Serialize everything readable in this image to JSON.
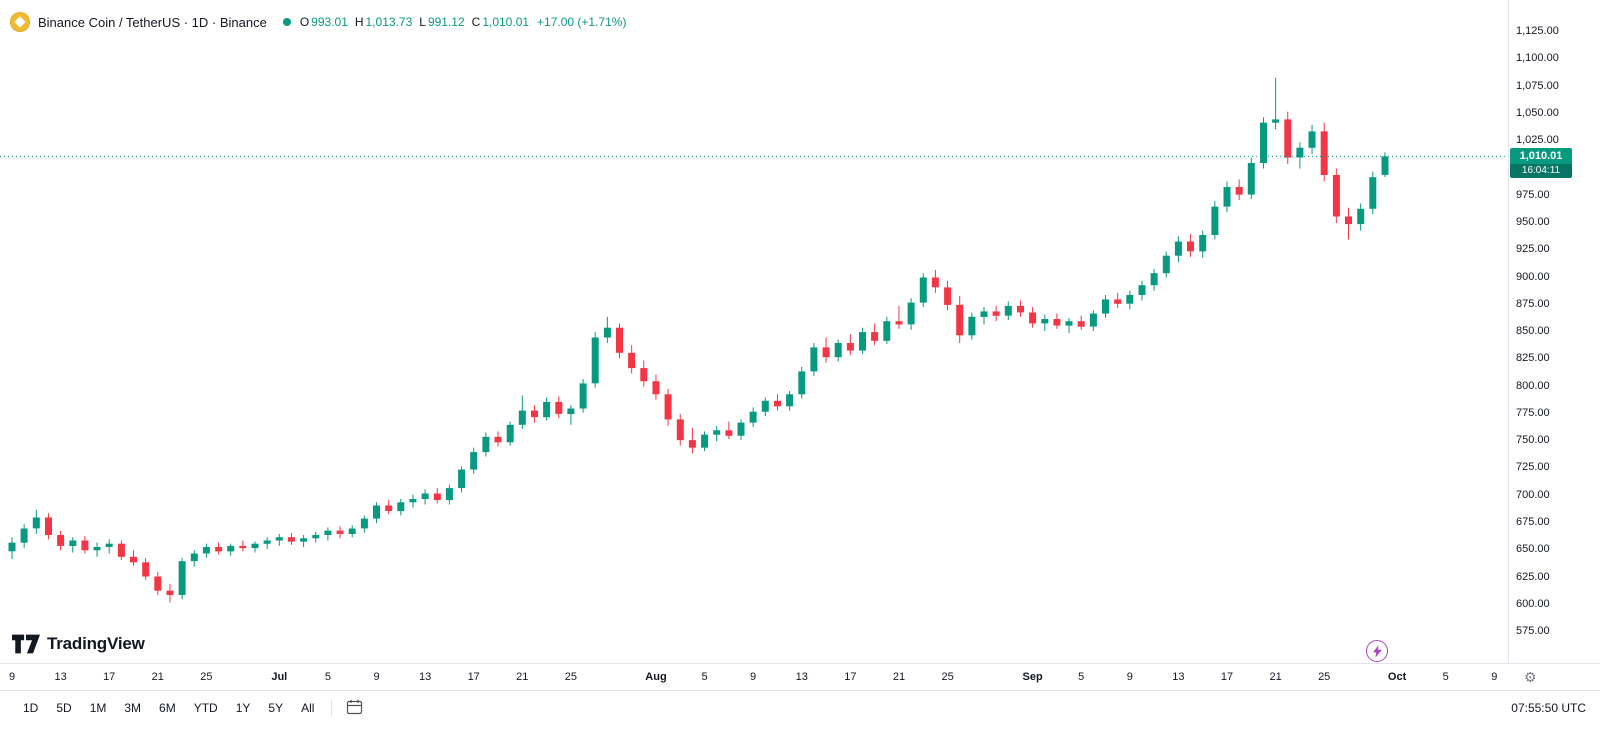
{
  "header": {
    "symbol_title": "Binance Coin / TetherUS · 1D · Binance",
    "ohlc_items": [
      {
        "label": "O",
        "value": "993.01"
      },
      {
        "label": "H",
        "value": "1,013.73"
      },
      {
        "label": "L",
        "value": "991.12"
      },
      {
        "label": "C",
        "value": "1,010.01"
      }
    ],
    "change": "+17.00 (+1.71%)"
  },
  "logo": {
    "brand": "TradingView"
  },
  "toolbar": {
    "ranges": [
      "1D",
      "5D",
      "1M",
      "3M",
      "6M",
      "YTD",
      "1Y",
      "5Y",
      "All"
    ],
    "clock": "07:55:50 UTC"
  },
  "colors": {
    "up": "#089981",
    "down": "#f23645",
    "last_price_line": "#089981",
    "tag_bg": "#089981",
    "tag_countdown_bg": "#077566",
    "marker_purple": "#ab47bc",
    "axis_text": "#131722",
    "border": "#e0e3eb",
    "coin_gold": "#f3ba2f"
  },
  "chart_data": {
    "type": "candlestick",
    "title": "Binance Coin / TetherUS",
    "interval": "1D",
    "exchange": "Binance",
    "ylim": [
      575,
      1125
    ],
    "y_tick_step": 25,
    "grid": false,
    "last_price": 1010.01,
    "last_price_label": "1,010.01",
    "countdown": "16:04:11",
    "open": 993.01,
    "high": 1013.73,
    "low": 991.12,
    "close": 1010.01,
    "change_text": "+17.00 (+1.71%)",
    "columns": [
      "date",
      "open",
      "high",
      "low",
      "close"
    ],
    "y_ticks": [
      {
        "t": "1,125.00",
        "v": 1125
      },
      {
        "t": "1,100.00",
        "v": 1100
      },
      {
        "t": "1,075.00",
        "v": 1075
      },
      {
        "t": "1,050.00",
        "v": 1050
      },
      {
        "t": "1,025.00",
        "v": 1025
      },
      {
        "t": "975.00",
        "v": 975
      },
      {
        "t": "950.00",
        "v": 950
      },
      {
        "t": "925.00",
        "v": 925
      },
      {
        "t": "900.00",
        "v": 900
      },
      {
        "t": "875.00",
        "v": 875
      },
      {
        "t": "850.00",
        "v": 850
      },
      {
        "t": "825.00",
        "v": 825
      },
      {
        "t": "800.00",
        "v": 800
      },
      {
        "t": "775.00",
        "v": 775
      },
      {
        "t": "750.00",
        "v": 750
      },
      {
        "t": "725.00",
        "v": 725
      },
      {
        "t": "700.00",
        "v": 700
      },
      {
        "t": "675.00",
        "v": 675
      },
      {
        "t": "650.00",
        "v": 650
      },
      {
        "t": "625.00",
        "v": 625
      },
      {
        "t": "600.00",
        "v": 600
      },
      {
        "t": "575.00",
        "v": 575
      }
    ],
    "x_ticks": [
      {
        "t": "9",
        "d": 0
      },
      {
        "t": "13",
        "d": 4
      },
      {
        "t": "17",
        "d": 8
      },
      {
        "t": "21",
        "d": 12
      },
      {
        "t": "25",
        "d": 16
      },
      {
        "t": "Jul",
        "d": 22,
        "m": 1
      },
      {
        "t": "5",
        "d": 26
      },
      {
        "t": "9",
        "d": 30
      },
      {
        "t": "13",
        "d": 34
      },
      {
        "t": "17",
        "d": 38
      },
      {
        "t": "21",
        "d": 42
      },
      {
        "t": "25",
        "d": 46
      },
      {
        "t": "Aug",
        "d": 53,
        "m": 1
      },
      {
        "t": "5",
        "d": 57
      },
      {
        "t": "9",
        "d": 61
      },
      {
        "t": "13",
        "d": 65
      },
      {
        "t": "17",
        "d": 69
      },
      {
        "t": "21",
        "d": 73
      },
      {
        "t": "25",
        "d": 77
      },
      {
        "t": "Sep",
        "d": 84,
        "m": 1
      },
      {
        "t": "5",
        "d": 88
      },
      {
        "t": "9",
        "d": 92
      },
      {
        "t": "13",
        "d": 96
      },
      {
        "t": "17",
        "d": 100
      },
      {
        "t": "21",
        "d": 104
      },
      {
        "t": "25",
        "d": 108
      },
      {
        "t": "Oct",
        "d": 114,
        "m": 1
      },
      {
        "t": "5",
        "d": 118
      },
      {
        "t": "9",
        "d": 122
      }
    ],
    "candles": [
      [
        "Jun 9",
        648,
        661,
        641,
        656
      ],
      [
        "Jun 10",
        656,
        673,
        651,
        669
      ],
      [
        "Jun 11",
        669,
        686,
        664,
        679
      ],
      [
        "Jun 12",
        679,
        683,
        659,
        663
      ],
      [
        "Jun 13",
        663,
        667,
        649,
        653
      ],
      [
        "Jun 14",
        653,
        661,
        647,
        658
      ],
      [
        "Jun 15",
        658,
        662,
        646,
        649
      ],
      [
        "Jun 16",
        649,
        656,
        643,
        652
      ],
      [
        "Jun 17",
        652,
        659,
        646,
        655
      ],
      [
        "Jun 18",
        655,
        658,
        640,
        643
      ],
      [
        "Jun 19",
        643,
        649,
        635,
        638
      ],
      [
        "Jun 20",
        638,
        642,
        622,
        625
      ],
      [
        "Jun 21",
        625,
        629,
        608,
        612
      ],
      [
        "Jun 22",
        612,
        618,
        601,
        608
      ],
      [
        "Jun 23",
        608,
        642,
        604,
        639
      ],
      [
        "Jun 24",
        639,
        649,
        634,
        646
      ],
      [
        "Jun 25",
        646,
        655,
        642,
        652
      ],
      [
        "Jun 26",
        652,
        656,
        645,
        648
      ],
      [
        "Jun 27",
        648,
        655,
        644,
        653
      ],
      [
        "Jun 28",
        653,
        658,
        648,
        651
      ],
      [
        "Jun 29",
        651,
        657,
        647,
        655
      ],
      [
        "Jun 30",
        655,
        661,
        650,
        658
      ],
      [
        "Jul 1",
        658,
        664,
        653,
        661
      ],
      [
        "Jul 2",
        661,
        665,
        654,
        657
      ],
      [
        "Jul 3",
        657,
        663,
        652,
        660
      ],
      [
        "Jul 4",
        660,
        666,
        656,
        663
      ],
      [
        "Jul 5",
        663,
        670,
        658,
        667
      ],
      [
        "Jul 6",
        667,
        671,
        660,
        664
      ],
      [
        "Jul 7",
        664,
        672,
        661,
        669
      ],
      [
        "Jul 8",
        669,
        681,
        665,
        678
      ],
      [
        "Jul 9",
        678,
        693,
        674,
        690
      ],
      [
        "Jul 10",
        690,
        695,
        682,
        685
      ],
      [
        "Jul 11",
        685,
        696,
        681,
        693
      ],
      [
        "Jul 12",
        693,
        700,
        688,
        696
      ],
      [
        "Jul 13",
        696,
        705,
        691,
        701
      ],
      [
        "Jul 14",
        701,
        706,
        692,
        695
      ],
      [
        "Jul 15",
        695,
        709,
        691,
        706
      ],
      [
        "Jul 16",
        706,
        726,
        702,
        723
      ],
      [
        "Jul 17",
        723,
        743,
        719,
        739
      ],
      [
        "Jul 18",
        739,
        757,
        735,
        753
      ],
      [
        "Jul 19",
        753,
        758,
        744,
        748
      ],
      [
        "Jul 20",
        748,
        767,
        745,
        764
      ],
      [
        "Jul 21",
        764,
        791,
        760,
        777
      ],
      [
        "Jul 22",
        777,
        782,
        766,
        771
      ],
      [
        "Jul 23",
        771,
        789,
        768,
        785
      ],
      [
        "Jul 24",
        785,
        790,
        770,
        774
      ],
      [
        "Jul 25",
        774,
        782,
        764,
        779
      ],
      [
        "Jul 26",
        779,
        806,
        775,
        802
      ],
      [
        "Jul 27",
        802,
        849,
        798,
        844
      ],
      [
        "Jul 28",
        844,
        863,
        839,
        853
      ],
      [
        "Jul 29",
        853,
        857,
        825,
        830
      ],
      [
        "Jul 30",
        830,
        837,
        811,
        816
      ],
      [
        "Jul 31",
        816,
        823,
        799,
        804
      ],
      [
        "Aug 1",
        804,
        810,
        787,
        792
      ],
      [
        "Aug 2",
        792,
        797,
        763,
        769
      ],
      [
        "Aug 3",
        769,
        774,
        745,
        750
      ],
      [
        "Aug 4",
        750,
        761,
        738,
        743
      ],
      [
        "Aug 5",
        743,
        758,
        740,
        755
      ],
      [
        "Aug 6",
        755,
        763,
        749,
        759
      ],
      [
        "Aug 7",
        759,
        767,
        751,
        754
      ],
      [
        "Aug 8",
        754,
        769,
        750,
        766
      ],
      [
        "Aug 9",
        766,
        780,
        762,
        776
      ],
      [
        "Aug 10",
        776,
        789,
        772,
        786
      ],
      [
        "Aug 11",
        786,
        792,
        777,
        781
      ],
      [
        "Aug 12",
        781,
        795,
        777,
        792
      ],
      [
        "Aug 13",
        792,
        817,
        788,
        813
      ],
      [
        "Aug 14",
        813,
        839,
        809,
        835
      ],
      [
        "Aug 15",
        835,
        844,
        821,
        826
      ],
      [
        "Aug 16",
        826,
        842,
        822,
        839
      ],
      [
        "Aug 17",
        839,
        847,
        828,
        832
      ],
      [
        "Aug 18",
        832,
        853,
        829,
        849
      ],
      [
        "Aug 19",
        849,
        857,
        837,
        841
      ],
      [
        "Aug 20",
        841,
        863,
        838,
        859
      ],
      [
        "Aug 21",
        859,
        873,
        852,
        856
      ],
      [
        "Aug 22",
        856,
        880,
        851,
        876
      ],
      [
        "Aug 23",
        876,
        903,
        872,
        899
      ],
      [
        "Aug 24",
        899,
        906,
        885,
        890
      ],
      [
        "Aug 25",
        890,
        896,
        869,
        874
      ],
      [
        "Aug 26",
        874,
        882,
        839,
        846
      ],
      [
        "Aug 27",
        846,
        867,
        842,
        863
      ],
      [
        "Aug 28",
        863,
        872,
        856,
        868
      ],
      [
        "Aug 29",
        868,
        873,
        859,
        864
      ],
      [
        "Aug 30",
        864,
        877,
        860,
        873
      ],
      [
        "Aug 31",
        873,
        878,
        863,
        867
      ],
      [
        "Sep 1",
        867,
        872,
        853,
        857
      ],
      [
        "Sep 2",
        857,
        865,
        850,
        861
      ],
      [
        "Sep 3",
        861,
        866,
        852,
        855
      ],
      [
        "Sep 4",
        855,
        862,
        848,
        859
      ],
      [
        "Sep 5",
        859,
        864,
        851,
        854
      ],
      [
        "Sep 6",
        854,
        869,
        850,
        866
      ],
      [
        "Sep 7",
        866,
        883,
        862,
        879
      ],
      [
        "Sep 8",
        879,
        885,
        871,
        875
      ],
      [
        "Sep 9",
        875,
        887,
        870,
        883
      ],
      [
        "Sep 10",
        883,
        896,
        878,
        892
      ],
      [
        "Sep 11",
        892,
        907,
        887,
        903
      ],
      [
        "Sep 12",
        903,
        923,
        899,
        919
      ],
      [
        "Sep 13",
        919,
        937,
        913,
        932
      ],
      [
        "Sep 14",
        932,
        939,
        918,
        923
      ],
      [
        "Sep 15",
        923,
        942,
        917,
        938
      ],
      [
        "Sep 16",
        938,
        969,
        934,
        964
      ],
      [
        "Sep 17",
        964,
        987,
        959,
        982
      ],
      [
        "Sep 18",
        982,
        989,
        970,
        975
      ],
      [
        "Sep 19",
        975,
        1009,
        971,
        1004
      ],
      [
        "Sep 20",
        1004,
        1046,
        999,
        1041
      ],
      [
        "Sep 21",
        1041,
        1082,
        1035,
        1044
      ],
      [
        "Sep 22",
        1044,
        1051,
        1003,
        1009
      ],
      [
        "Sep 23",
        1009,
        1023,
        999,
        1018
      ],
      [
        "Sep 24",
        1018,
        1039,
        1012,
        1033
      ],
      [
        "Sep 25",
        1033,
        1041,
        987,
        993
      ],
      [
        "Sep 26",
        993,
        999,
        949,
        955
      ],
      [
        "Sep 27",
        955,
        963,
        934,
        948
      ],
      [
        "Sep 28",
        948,
        967,
        942,
        962
      ],
      [
        "Sep 29",
        962,
        996,
        957,
        991
      ],
      [
        "Sep 30",
        993.01,
        1013.73,
        991.12,
        1010.01
      ]
    ]
  }
}
